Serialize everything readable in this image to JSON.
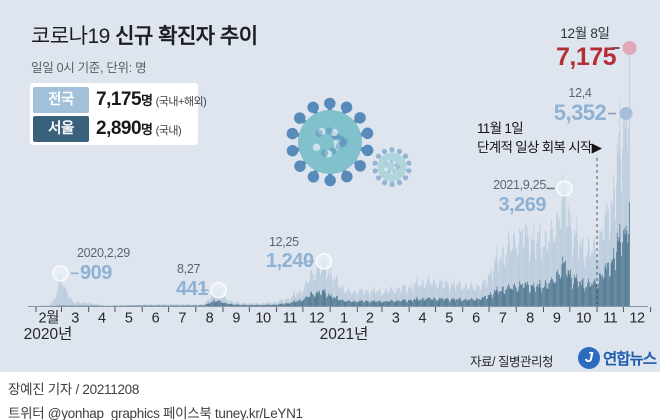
{
  "title": {
    "prefix": "코로나19 ",
    "bold": "신규 확진자 추이"
  },
  "subtitle": "일일 0시 기준, 단위: 명",
  "legend": {
    "rows": [
      {
        "label": "전국",
        "chip_color": "#a2c0d9",
        "value": "7,175",
        "unit": "명",
        "note": " (국내+해외)"
      },
      {
        "label": "서울",
        "chip_color": "#39617c",
        "value": "2,890",
        "unit": "명",
        "note": " (국내)"
      }
    ]
  },
  "annotations": {
    "latest": {
      "date": "12월 8일",
      "value": "7,175"
    },
    "second": {
      "date": "12,4",
      "value": "5,352"
    },
    "policy": {
      "line1": "11월 1일",
      "line2": "단계적 일상 회복 시작▶"
    },
    "peak_2021_09": {
      "date": "2021,9,25",
      "value": "3,269"
    },
    "peak_2020_12": {
      "date": "12,25",
      "value": "1,240"
    },
    "peak_2020_02": {
      "date": "2020,2,29",
      "value": "909"
    },
    "peak_2020_08": {
      "date": "8,27",
      "value": "441"
    }
  },
  "footer": {
    "source": "자료/ 질병관리청",
    "logo_text": "연합뉴스",
    "logo_glyph": "J"
  },
  "byline": {
    "line1": "장예진 기자 / 20211208",
    "line2": "트위터 @yonhap_graphics  페이스북 tuney.kr/LeYN1"
  },
  "colors": {
    "bg": "#dfe5ee",
    "bar_national": "#b5c8da",
    "bar_seoul": "#3c6882",
    "accent_red": "#b32e35",
    "accent_blue": "#8fb1d4",
    "dot_pink": "#e0a9b9",
    "dot_blue": "#a7bdd8",
    "logo_blue": "#2b6cbe",
    "axis_text": "#24282c"
  },
  "chart_data": {
    "type": "bar",
    "title": "코로나19 신규 확진자 추이 (일일 0시 기준, 명)",
    "series_names": [
      "전국(국내+해외)",
      "서울(국내)"
    ],
    "x_start": "2020-02-01",
    "x_end": "2021-12-08",
    "total_days": 676,
    "y_max": 7175,
    "month_labels": [
      "2월",
      "3",
      "4",
      "5",
      "6",
      "7",
      "8",
      "9",
      "10",
      "11",
      "12",
      "1",
      "2",
      "3",
      "4",
      "5",
      "6",
      "7",
      "8",
      "9",
      "10",
      "11",
      "12"
    ],
    "month_lengths": [
      29,
      31,
      30,
      31,
      30,
      31,
      31,
      30,
      31,
      30,
      31,
      31,
      28,
      31,
      30,
      31,
      30,
      31,
      31,
      30,
      31,
      30,
      31
    ],
    "year_labels": [
      "2020년",
      "2021년"
    ],
    "anchors_format": [
      "day_offset",
      "national",
      "seoul",
      "pinned"
    ],
    "anchors": [
      [
        0,
        2,
        0,
        0
      ],
      [
        16,
        25,
        2,
        0
      ],
      [
        22,
        230,
        6,
        0
      ],
      [
        28,
        909,
        15,
        1
      ],
      [
        33,
        470,
        12,
        0
      ],
      [
        43,
        100,
        10,
        0
      ],
      [
        60,
        90,
        12,
        0
      ],
      [
        79,
        15,
        5,
        0
      ],
      [
        99,
        25,
        8,
        0
      ],
      [
        121,
        38,
        14,
        0
      ],
      [
        151,
        45,
        12,
        0
      ],
      [
        191,
        45,
        18,
        0
      ],
      [
        201,
        310,
        130,
        0
      ],
      [
        208,
        441,
        154,
        1
      ],
      [
        217,
        180,
        70,
        0
      ],
      [
        232,
        82,
        32,
        0
      ],
      [
        257,
        75,
        28,
        0
      ],
      [
        274,
        115,
        42,
        0
      ],
      [
        288,
        220,
        85,
        0
      ],
      [
        304,
        480,
        185,
        0
      ],
      [
        315,
        950,
        360,
        0
      ],
      [
        328,
        1240,
        420,
        1
      ],
      [
        339,
        780,
        250,
        0
      ],
      [
        354,
        420,
        135,
        0
      ],
      [
        375,
        430,
        140,
        0
      ],
      [
        398,
        420,
        135,
        0
      ],
      [
        425,
        560,
        170,
        0
      ],
      [
        444,
        700,
        215,
        0
      ],
      [
        469,
        650,
        200,
        0
      ],
      [
        495,
        540,
        185,
        0
      ],
      [
        510,
        610,
        230,
        0
      ],
      [
        522,
        1210,
        410,
        0
      ],
      [
        535,
        1630,
        510,
        0
      ],
      [
        556,
        2100,
        620,
        0
      ],
      [
        571,
        1880,
        560,
        0
      ],
      [
        587,
        1950,
        680,
        0
      ],
      [
        602,
        3269,
        1220,
        1
      ],
      [
        612,
        2080,
        790,
        0
      ],
      [
        627,
        1580,
        620,
        0
      ],
      [
        639,
        1690,
        700,
        0
      ],
      [
        648,
        2420,
        1010,
        0
      ],
      [
        658,
        3210,
        1400,
        0
      ],
      [
        662,
        4120,
        1750,
        0
      ],
      [
        669,
        5123,
        2100,
        1
      ],
      [
        670,
        5266,
        2150,
        1
      ],
      [
        671,
        4944,
        2000,
        1
      ],
      [
        672,
        5352,
        2228,
        1
      ],
      [
        673,
        5128,
        2100,
        1
      ],
      [
        674,
        4325,
        1750,
        1
      ],
      [
        675,
        4954,
        2000,
        1
      ],
      [
        676,
        7175,
        2890,
        1
      ]
    ],
    "highlights": [
      {
        "day": 28,
        "value": 909,
        "marker": "halo"
      },
      {
        "day": 208,
        "value": 441,
        "marker": "halo"
      },
      {
        "day": 328,
        "value": 1240,
        "marker": "halo"
      },
      {
        "day": 602,
        "value": 3269,
        "marker": "halo"
      },
      {
        "day": 672,
        "value": 5352,
        "marker": "dot_blue"
      },
      {
        "day": 676,
        "value": 7175,
        "marker": "dot_pink"
      }
    ],
    "policy_line_day": 639
  }
}
